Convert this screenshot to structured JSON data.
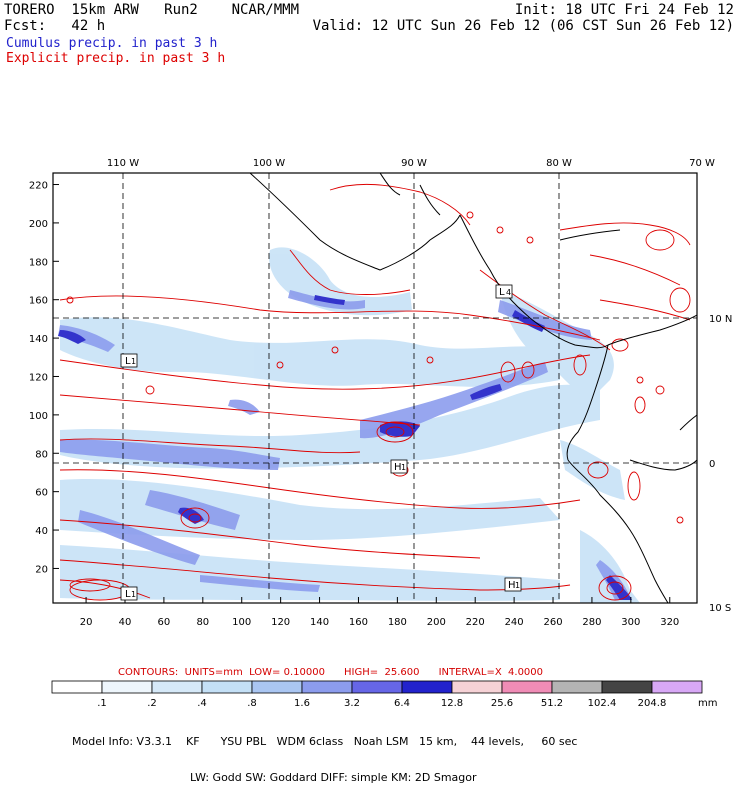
{
  "header": {
    "left_line1": "TORERO  15km ARW   Run2    NCAR/MMM",
    "left_line2": "Fcst:   42 h",
    "right_line1": "Init: 18 UTC Fri 24 Feb 12",
    "right_line2": "Valid: 12 UTC Sun 26 Feb 12 (06 CST Sun 26 Feb 12)",
    "cumulus": "Cumulus precip. in past 3 h",
    "explicit": "Explicit precip. in past 3 h",
    "cumulus_color": "#2222cc",
    "explicit_color": "#dd0000"
  },
  "map": {
    "top_lon_labels": [
      "110 W",
      "100 W",
      "90 W",
      "80 W",
      "70 W"
    ],
    "right_lat_labels": [
      "10 N",
      "0",
      "10 S"
    ],
    "y_ticks": [
      "220",
      "200",
      "180",
      "160",
      "140",
      "120",
      "100",
      "80",
      "60",
      "40",
      "20"
    ],
    "x_ticks": [
      "20",
      "40",
      "60",
      "80",
      "100",
      "120",
      "140",
      "160",
      "180",
      "200",
      "220",
      "240",
      "260",
      "280",
      "300",
      "320"
    ],
    "markers": [
      {
        "letter": "L",
        "num": "1"
      },
      {
        "letter": "L",
        "num": "1"
      },
      {
        "letter": "H",
        "num": "1"
      },
      {
        "letter": "L",
        "num": "4"
      },
      {
        "letter": "H",
        "num": "1"
      }
    ]
  },
  "contours_line": "CONTOURS:  UNITS=mm  LOW= 0.10000      HIGH=  25.600      INTERVAL=X  4.0000",
  "colorbar": {
    "unit": "mm",
    "labels": [
      ".1",
      ".2",
      ".4",
      ".8",
      "1.6",
      "3.2",
      "6.4",
      "12.8",
      "25.6",
      "51.2",
      "102.4",
      "204.8"
    ],
    "colors": [
      "#ffffff",
      "#eef6fc",
      "#d6e9f8",
      "#c4e0f6",
      "#aac6f2",
      "#8c9ced",
      "#6666e6",
      "#2222cc",
      "#f6d2d6",
      "#f08cb6",
      "#b4b4b4",
      "#444444",
      "#d8a8f6"
    ]
  },
  "model_info": {
    "line1": "Model Info: V3.3.1    KF      YSU PBL   WDM 6class   Noah LSM   15 km,    44 levels,     60 sec",
    "line2": "LW: Godd SW: Goddard DIFF: simple KM: 2D Smagor"
  }
}
